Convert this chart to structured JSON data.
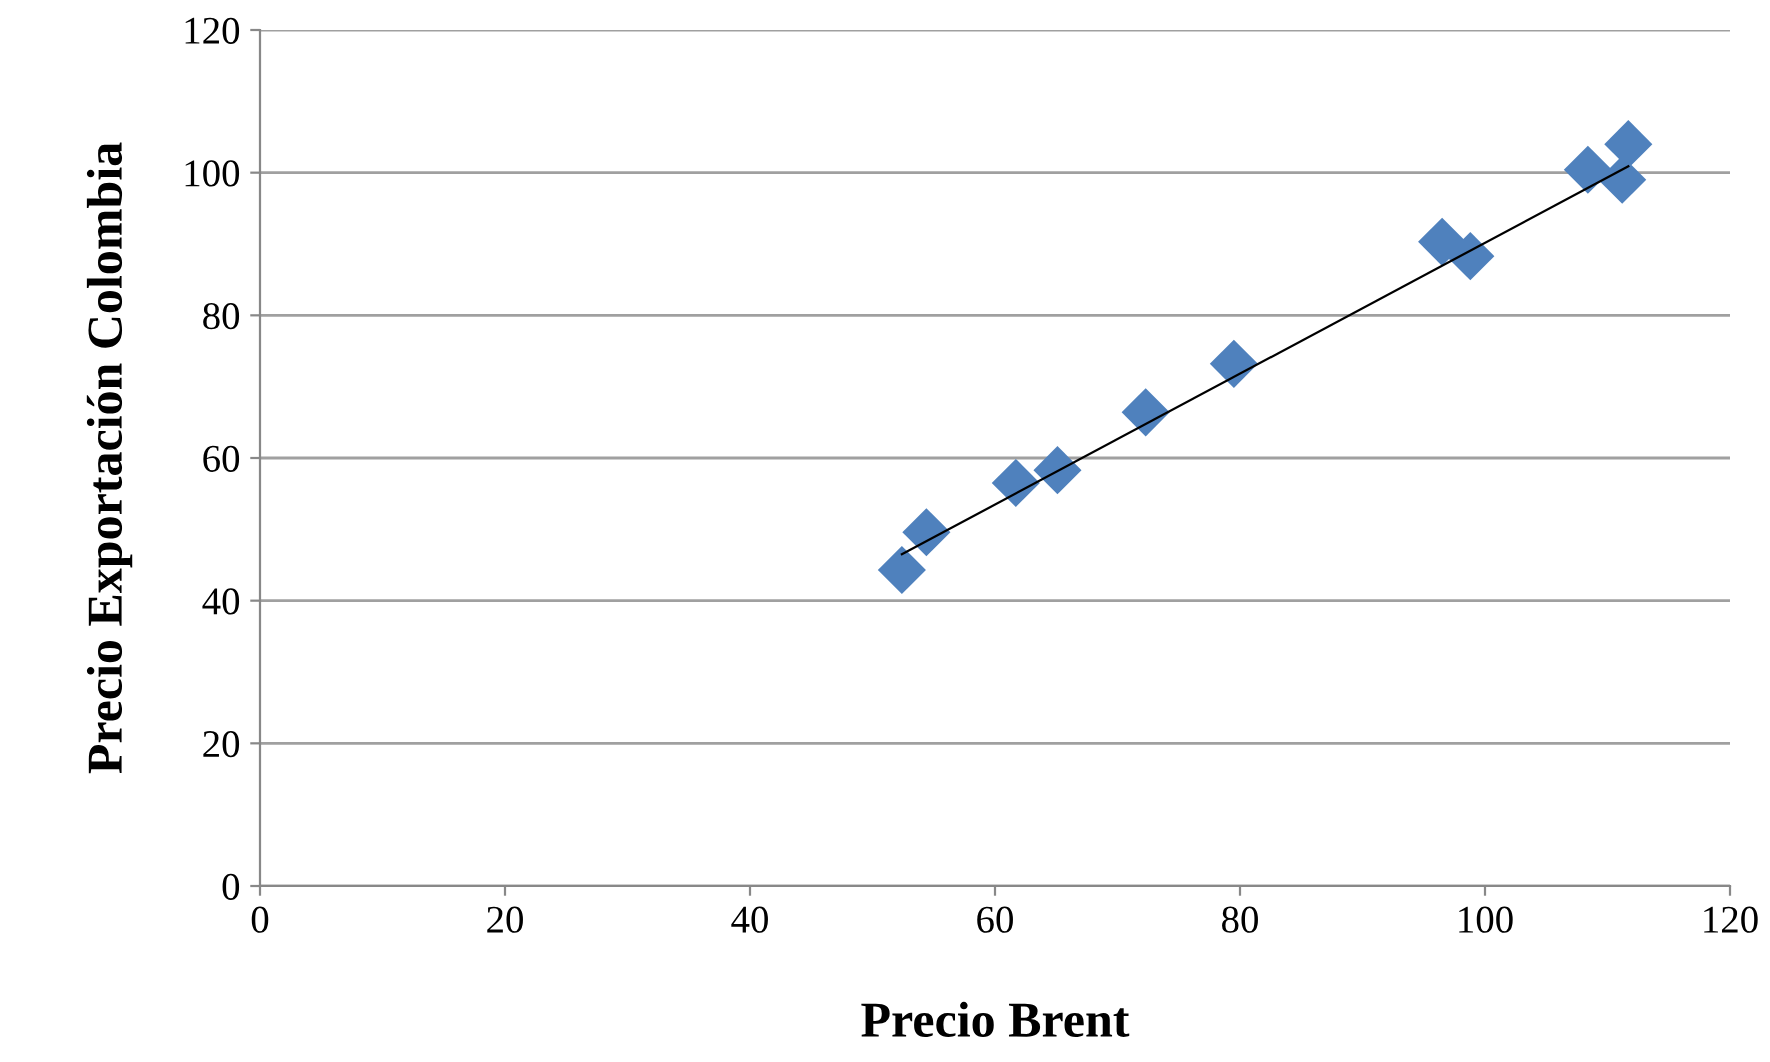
{
  "chart_data": {
    "type": "scatter",
    "xlabel": "Precio Brent",
    "ylabel": "Precio Exportación Colombia",
    "xlim": [
      0,
      120
    ],
    "xticks": [
      0,
      20,
      40,
      60,
      80,
      100,
      120
    ],
    "ylim": [
      0,
      120
    ],
    "yticks": [
      0,
      20,
      40,
      60,
      80,
      100,
      120
    ],
    "grid": "y",
    "marker": "diamond",
    "series": [
      {
        "color": "#4f81bd",
        "x": [
          52.4,
          54.4,
          61.7,
          65.1,
          72.3,
          79.5,
          96.5,
          98.8,
          108.4,
          111.2,
          111.7
        ],
        "values": [
          44.3,
          49.6,
          56.5,
          58.3,
          66.4,
          73.2,
          90.3,
          88.3,
          100.4,
          99.0,
          104.0
        ]
      },
      {
        "type": "line",
        "marker": "none",
        "color": "#000000",
        "x": [
          52.4,
          111.7
        ],
        "values": [
          46.5,
          100.9
        ]
      }
    ]
  }
}
